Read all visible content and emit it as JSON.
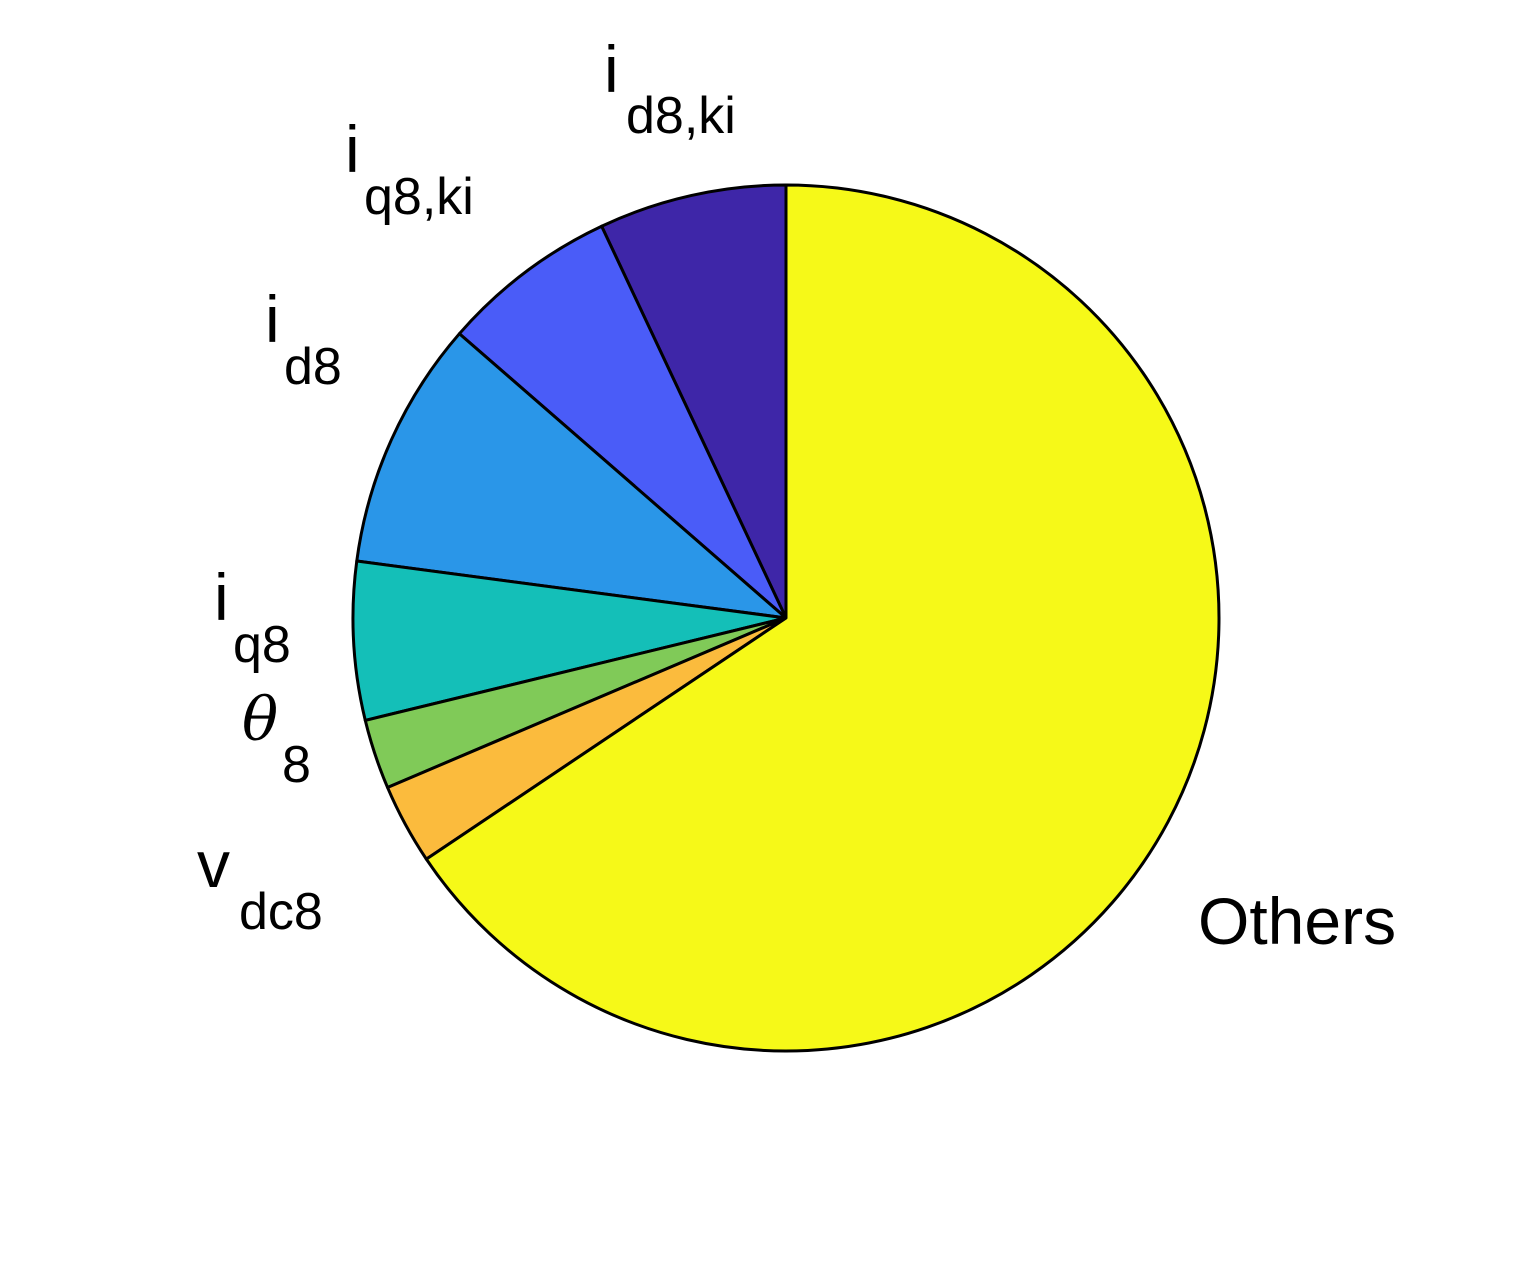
{
  "chart_data": {
    "type": "pie",
    "title": "",
    "start_angle_deg": 90,
    "direction": "counterclockwise",
    "slices": [
      {
        "label_main": "i",
        "label_sub": "d8,ki",
        "value": 7.0,
        "color": "#3e26a8"
      },
      {
        "label_main": "i",
        "label_sub": "q8,ki",
        "value": 6.6,
        "color": "#4a5cf8"
      },
      {
        "label_main": "i",
        "label_sub": "d8",
        "value": 9.3,
        "color": "#2a96e8"
      },
      {
        "label_main": "i",
        "label_sub": "q8",
        "value": 5.9,
        "color": "#14bfb8"
      },
      {
        "label_main": "θ",
        "label_sub": "8",
        "value": 2.6,
        "color": "#80ca58"
      },
      {
        "label_main": "v",
        "label_sub": "dc8",
        "value": 3.0,
        "color": "#fbbb3d"
      },
      {
        "label_main": "Others",
        "label_sub": "",
        "value": 65.6,
        "color": "#f6f918"
      }
    ]
  }
}
